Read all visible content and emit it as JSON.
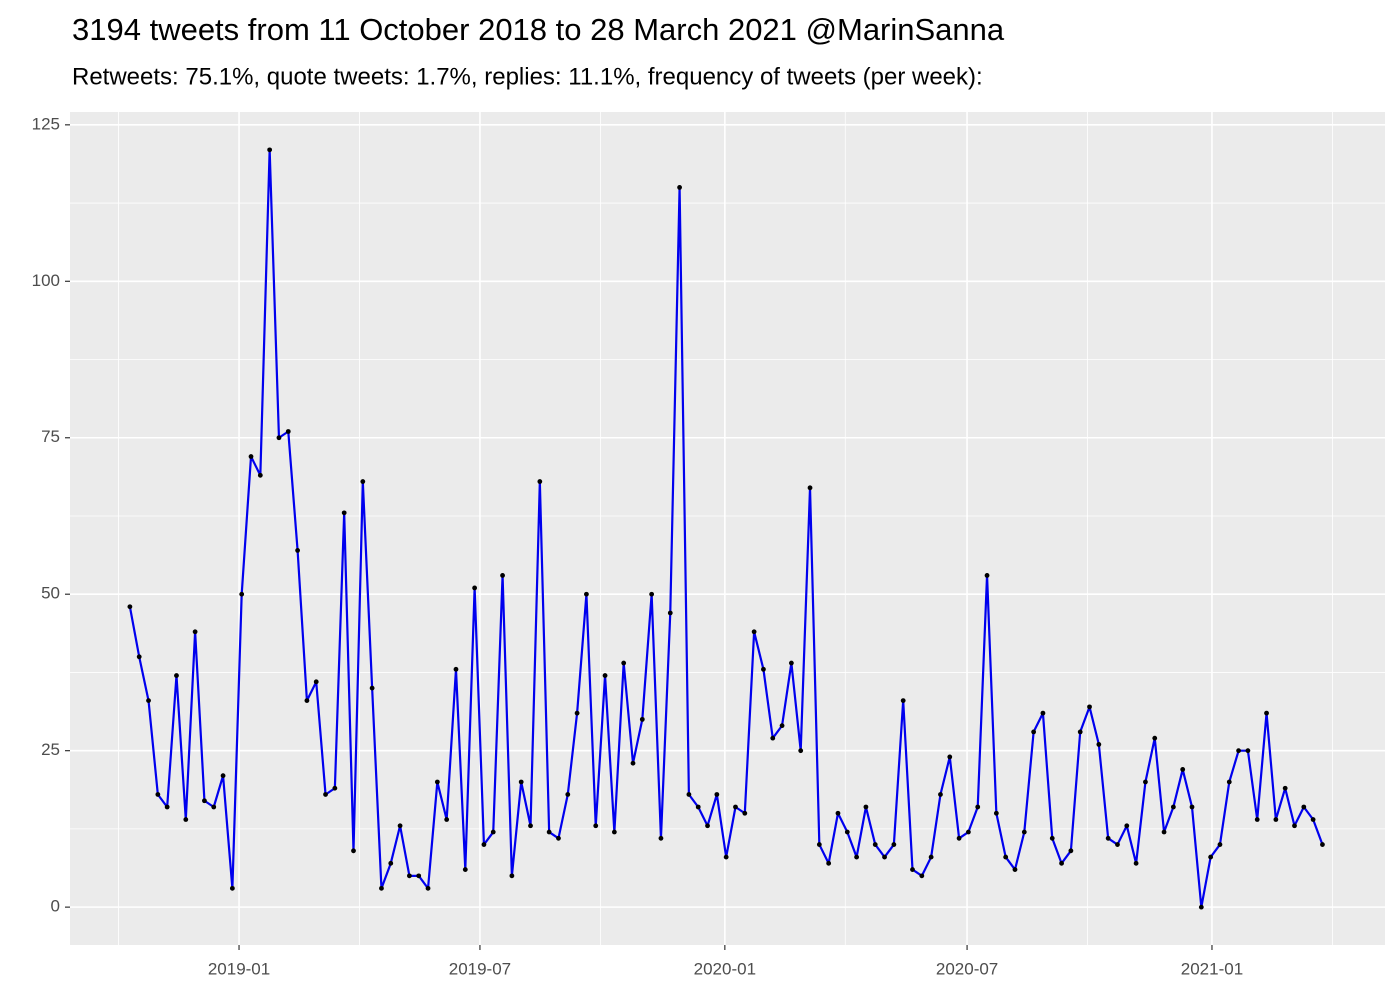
{
  "chart_data": {
    "type": "line",
    "title": "3194 tweets from 11 October 2018 to 28 March 2021 @MarinSanna",
    "subtitle": "Retweets: 75.1%, quote tweets: 1.7%, replies: 11.1%, frequency of tweets (per week):",
    "x": [
      "2018-10-11",
      "2018-10-18",
      "2018-10-25",
      "2018-11-01",
      "2018-11-08",
      "2018-11-15",
      "2018-11-22",
      "2018-11-29",
      "2018-12-06",
      "2018-12-13",
      "2018-12-20",
      "2018-12-27",
      "2019-01-03",
      "2019-01-10",
      "2019-01-17",
      "2019-01-24",
      "2019-01-31",
      "2019-02-07",
      "2019-02-14",
      "2019-02-21",
      "2019-02-28",
      "2019-03-07",
      "2019-03-14",
      "2019-03-21",
      "2019-03-28",
      "2019-04-04",
      "2019-04-11",
      "2019-04-18",
      "2019-04-25",
      "2019-05-02",
      "2019-05-09",
      "2019-05-16",
      "2019-05-23",
      "2019-05-30",
      "2019-06-06",
      "2019-06-13",
      "2019-06-20",
      "2019-06-27",
      "2019-07-04",
      "2019-07-11",
      "2019-07-18",
      "2019-07-25",
      "2019-08-01",
      "2019-08-08",
      "2019-08-15",
      "2019-08-22",
      "2019-08-29",
      "2019-09-05",
      "2019-09-12",
      "2019-09-19",
      "2019-09-26",
      "2019-10-03",
      "2019-10-10",
      "2019-10-17",
      "2019-10-24",
      "2019-10-31",
      "2019-11-07",
      "2019-11-14",
      "2019-11-21",
      "2019-11-28",
      "2019-12-05",
      "2019-12-12",
      "2019-12-19",
      "2019-12-26",
      "2020-01-02",
      "2020-01-09",
      "2020-01-16",
      "2020-01-23",
      "2020-01-30",
      "2020-02-06",
      "2020-02-13",
      "2020-02-20",
      "2020-02-27",
      "2020-03-05",
      "2020-03-12",
      "2020-03-19",
      "2020-03-26",
      "2020-04-02",
      "2020-04-09",
      "2020-04-16",
      "2020-04-23",
      "2020-04-30",
      "2020-05-07",
      "2020-05-14",
      "2020-05-21",
      "2020-05-28",
      "2020-06-04",
      "2020-06-11",
      "2020-06-18",
      "2020-06-25",
      "2020-07-02",
      "2020-07-09",
      "2020-07-16",
      "2020-07-23",
      "2020-07-30",
      "2020-08-06",
      "2020-08-13",
      "2020-08-20",
      "2020-08-27",
      "2020-09-03",
      "2020-09-10",
      "2020-09-17",
      "2020-09-24",
      "2020-10-01",
      "2020-10-08",
      "2020-10-15",
      "2020-10-22",
      "2020-10-29",
      "2020-11-05",
      "2020-11-12",
      "2020-11-19",
      "2020-11-26",
      "2020-12-03",
      "2020-12-10",
      "2020-12-17",
      "2020-12-24",
      "2020-12-31",
      "2021-01-07",
      "2021-01-14",
      "2021-01-21",
      "2021-01-28",
      "2021-02-04",
      "2021-02-11",
      "2021-02-18",
      "2021-02-25",
      "2021-03-04",
      "2021-03-11",
      "2021-03-18",
      "2021-03-25"
    ],
    "values": [
      48,
      40,
      33,
      18,
      16,
      37,
      14,
      44,
      17,
      16,
      21,
      3,
      50,
      72,
      69,
      121,
      75,
      76,
      57,
      33,
      36,
      18,
      19,
      63,
      9,
      68,
      35,
      3,
      7,
      13,
      5,
      5,
      3,
      20,
      14,
      38,
      6,
      51,
      10,
      12,
      53,
      5,
      20,
      13,
      68,
      12,
      11,
      18,
      31,
      50,
      13,
      37,
      12,
      39,
      23,
      30,
      50,
      11,
      47,
      115,
      18,
      16,
      13,
      18,
      8,
      16,
      15,
      44,
      38,
      27,
      29,
      39,
      25,
      67,
      10,
      7,
      15,
      12,
      8,
      16,
      10,
      8,
      10,
      33,
      6,
      5,
      8,
      18,
      24,
      11,
      12,
      16,
      53,
      15,
      8,
      6,
      12,
      28,
      31,
      11,
      7,
      9,
      28,
      32,
      26,
      11,
      10,
      13,
      7,
      20,
      27,
      12,
      16,
      22,
      16,
      0,
      8,
      10,
      20,
      25,
      25,
      14,
      31,
      14,
      19,
      13,
      16,
      14,
      10
    ],
    "color": "#0000ee",
    "point_color": "#000000",
    "xlim": [
      "2018-08-27",
      "2021-05-11"
    ],
    "xticks": [
      {
        "value": "2019-01-01",
        "label": "2019-01"
      },
      {
        "value": "2019-07-01",
        "label": "2019-07"
      },
      {
        "value": "2020-01-01",
        "label": "2020-01"
      },
      {
        "value": "2020-07-01",
        "label": "2020-07"
      },
      {
        "value": "2021-01-01",
        "label": "2021-01"
      }
    ],
    "ylim": [
      -6.05,
      127.05
    ],
    "yticks": [
      0,
      25,
      50,
      75,
      100,
      125
    ],
    "grid": true
  }
}
